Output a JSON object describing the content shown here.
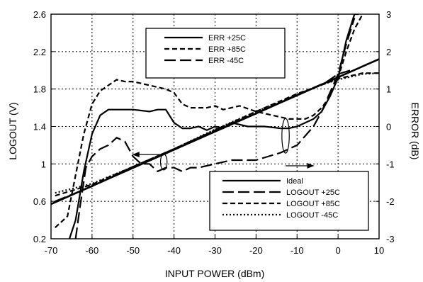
{
  "chart_data": {
    "type": "line",
    "xlabel": "INPUT POWER (dBm)",
    "ylabel_left": "LOGOUT (V)",
    "ylabel_right": "ERROR  (dB)",
    "xlim": [
      -70,
      10
    ],
    "ylim_left": [
      0.2,
      2.6
    ],
    "ylim_right": [
      -3,
      3
    ],
    "x_ticks": [
      "-70",
      "-60",
      "-50",
      "-40",
      "-30",
      "-20",
      "-10",
      "0",
      "10"
    ],
    "y_left_ticks": [
      "0.2",
      "0.6",
      "1",
      "1.4",
      "1.8",
      "2.2",
      "2.6"
    ],
    "y_right_ticks": [
      "-3",
      "-2",
      "-1",
      "0",
      "1",
      "2",
      "3"
    ],
    "grid": "dotted",
    "legend_error": {
      "placement": "top-left",
      "entries": [
        {
          "label": "ERR +25C",
          "style": "solid"
        },
        {
          "label": "ERR +85C",
          "style": "short-dash"
        },
        {
          "label": "ERR  -45C",
          "style": "long-dash"
        }
      ]
    },
    "legend_logout": {
      "placement": "bottom-right",
      "entries": [
        {
          "label": "Ideal",
          "style": "solid"
        },
        {
          "label": "LOGOUT +25C",
          "style": "long-dash"
        },
        {
          "label": "LOGOUT +85C",
          "style": "short-dash"
        },
        {
          "label": "LOGOUT  -45C",
          "style": "dotted"
        }
      ]
    },
    "series": [
      {
        "group": "logout",
        "axis": "left",
        "style": "solid",
        "width": 2.6,
        "x": [
          -70,
          10
        ],
        "y": [
          0.57,
          2.12
        ]
      },
      {
        "group": "logout",
        "axis": "left",
        "style": "long-dash",
        "width": 2.2,
        "x": [
          -69,
          -60,
          -50,
          -40,
          -30,
          -20,
          -10,
          -3,
          0,
          3
        ],
        "y": [
          0.6,
          0.76,
          0.97,
          1.16,
          1.36,
          1.54,
          1.74,
          1.87,
          1.96,
          2.0
        ]
      },
      {
        "group": "logout",
        "axis": "left",
        "style": "short-dash",
        "width": 2.2,
        "x": [
          -69,
          -60,
          -50,
          -40,
          -30,
          -20,
          -10,
          -3,
          0,
          6,
          10
        ],
        "y": [
          0.66,
          0.78,
          0.97,
          1.16,
          1.36,
          1.56,
          1.75,
          1.86,
          1.91,
          1.97,
          1.97
        ]
      },
      {
        "group": "logout",
        "axis": "left",
        "style": "dotted",
        "width": 2.2,
        "x": [
          -69,
          -60,
          -50,
          -40,
          -30,
          -20,
          -10,
          -3,
          0,
          6,
          10
        ],
        "y": [
          0.69,
          0.79,
          0.97,
          1.16,
          1.37,
          1.56,
          1.74,
          1.86,
          1.9,
          1.96,
          1.97
        ]
      },
      {
        "group": "error",
        "axis": "right",
        "style": "solid",
        "width": 2.2,
        "x": [
          -65.5,
          -64,
          -62,
          -60,
          -58,
          -56,
          -54,
          -50,
          -46,
          -44,
          -42,
          -40,
          -38,
          -36,
          -34,
          -32,
          -30,
          -28,
          -26,
          -22,
          -18,
          -14,
          -12,
          -10,
          -8,
          -6,
          -4,
          -2,
          0,
          2,
          4,
          5
        ],
        "y": [
          -3.0,
          -2.5,
          -1.2,
          -0.2,
          0.3,
          0.45,
          0.45,
          0.45,
          0.4,
          0.45,
          0.45,
          0.1,
          -0.05,
          -0.05,
          0.0,
          -0.1,
          0.0,
          -0.05,
          0.1,
          0.0,
          0.0,
          -0.05,
          -0.05,
          0.0,
          0.1,
          0.2,
          0.4,
          0.8,
          1.3,
          2.3,
          3.0,
          3.0
        ]
      },
      {
        "group": "error",
        "axis": "right",
        "style": "short-dash",
        "width": 2.2,
        "x": [
          -69,
          -66,
          -64,
          -62,
          -60,
          -58,
          -56,
          -54,
          -52,
          -50,
          -46,
          -42,
          -40,
          -38,
          -36,
          -32,
          -30,
          -28,
          -24,
          -20,
          -16,
          -12,
          -8,
          -6,
          -4,
          -2,
          0,
          2,
          4,
          6
        ],
        "y": [
          -2.7,
          -2.4,
          -1.3,
          -0.2,
          0.6,
          0.95,
          1.1,
          1.25,
          1.2,
          1.2,
          1.1,
          1.0,
          0.9,
          0.6,
          0.5,
          0.5,
          0.55,
          0.45,
          0.55,
          0.4,
          0.3,
          0.2,
          0.2,
          0.3,
          0.5,
          0.8,
          1.3,
          2.0,
          2.6,
          3.0
        ]
      },
      {
        "group": "error",
        "axis": "right",
        "style": "long-dash",
        "width": 2.2,
        "x": [
          -64,
          -63,
          -61.5,
          -60,
          -58,
          -56,
          -54,
          -52,
          -50,
          -48,
          -46,
          -44,
          -42,
          -40,
          -38,
          -36,
          -34,
          -30,
          -26,
          -20,
          -14,
          -10,
          -6,
          -4,
          -2,
          0,
          2,
          4
        ],
        "y": [
          -3.0,
          -2.2,
          -1.1,
          -0.8,
          -0.6,
          -0.5,
          -0.3,
          -0.4,
          -0.8,
          -1.0,
          -1.0,
          -1.2,
          -1.1,
          -1.1,
          -1.2,
          -1.1,
          -1.1,
          -1.0,
          -0.9,
          -0.9,
          -0.7,
          -0.5,
          0.0,
          0.4,
          0.9,
          1.4,
          2.2,
          2.9
        ]
      }
    ],
    "annotations": [
      {
        "type": "ellipse",
        "cx": -42.5,
        "cy": 1.02,
        "rx": 0.8,
        "ry": 0.085
      },
      {
        "type": "arrow",
        "from": [
          -42.5,
          1.1
        ],
        "to": [
          -50,
          1.1
        ],
        "note": "points to left axis"
      },
      {
        "type": "ellipse",
        "cx": -12.8,
        "cy": 1.3,
        "rx": 0.9,
        "ry": 0.185
      },
      {
        "type": "arrow",
        "from": [
          -12.8,
          0.98
        ],
        "to": [
          -6,
          0.98
        ],
        "note": "points to right axis"
      }
    ]
  }
}
